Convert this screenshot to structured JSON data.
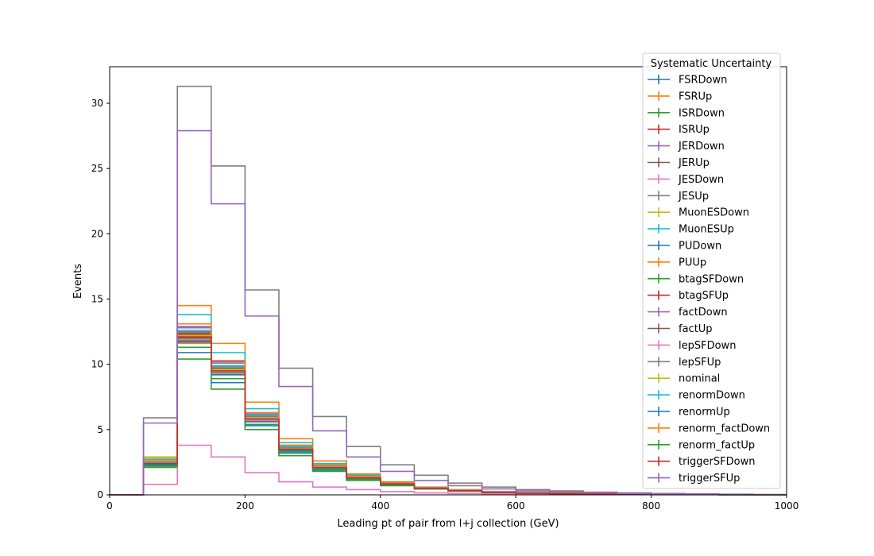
{
  "chart_data": {
    "type": "line",
    "drawstyle": "step",
    "xlabel": "Leading pt of pair from l+j collection (GeV)",
    "ylabel": "Events",
    "xlim": [
      0,
      1000
    ],
    "ylim": [
      0,
      32.8
    ],
    "xticks": [
      0,
      200,
      400,
      600,
      800,
      1000
    ],
    "yticks": [
      0,
      5,
      10,
      15,
      20,
      25,
      30
    ],
    "legend": {
      "title": "Systematic Uncertainty",
      "position": "top-right (overlapping plot edge)"
    },
    "bin_edges": [
      0,
      50,
      100,
      150,
      200,
      250,
      300,
      350,
      400,
      450,
      500,
      550,
      600,
      650,
      700,
      750,
      800,
      850,
      900,
      950,
      1000
    ],
    "series": [
      {
        "name": "FSRDown",
        "color": "#1f77b4",
        "values": [
          0,
          2.5,
          11.9,
          9.3,
          5.8,
          3.5,
          2.1,
          1.2,
          0.8,
          0.5,
          0.3,
          0.2,
          0.15,
          0.1,
          0.08,
          0.05,
          0.04,
          0.03,
          0.02,
          0.01
        ]
      },
      {
        "name": "FSRUp",
        "color": "#ff7f0e",
        "values": [
          0,
          2.8,
          14.5,
          11.6,
          7.1,
          4.3,
          2.6,
          1.6,
          1.0,
          0.6,
          0.4,
          0.25,
          0.18,
          0.12,
          0.09,
          0.06,
          0.04,
          0.03,
          0.02,
          0.01
        ]
      },
      {
        "name": "ISRDown",
        "color": "#2ca02c",
        "values": [
          0,
          2.1,
          10.4,
          8.1,
          5.0,
          3.0,
          1.8,
          1.1,
          0.7,
          0.45,
          0.28,
          0.18,
          0.12,
          0.08,
          0.06,
          0.04,
          0.03,
          0.02,
          0.01,
          0.01
        ]
      },
      {
        "name": "ISRUp",
        "color": "#d62728",
        "values": [
          0,
          2.4,
          12.3,
          9.6,
          5.9,
          3.6,
          2.2,
          1.3,
          0.85,
          0.5,
          0.32,
          0.2,
          0.14,
          0.09,
          0.07,
          0.05,
          0.03,
          0.02,
          0.02,
          0.01
        ]
      },
      {
        "name": "JERDown",
        "color": "#9467bd",
        "values": [
          0,
          2.5,
          12.9,
          10.2,
          6.2,
          3.8,
          2.3,
          1.4,
          0.9,
          0.55,
          0.35,
          0.22,
          0.15,
          0.1,
          0.07,
          0.05,
          0.03,
          0.02,
          0.02,
          0.01
        ]
      },
      {
        "name": "JERUp",
        "color": "#8c564b",
        "values": [
          0,
          2.4,
          12.4,
          9.7,
          6.0,
          3.6,
          2.2,
          1.3,
          0.85,
          0.52,
          0.33,
          0.21,
          0.14,
          0.09,
          0.07,
          0.05,
          0.03,
          0.02,
          0.02,
          0.01
        ]
      },
      {
        "name": "JESDown",
        "color": "#e377c2",
        "values": [
          0,
          0.8,
          3.8,
          2.9,
          1.7,
          1.0,
          0.6,
          0.4,
          0.25,
          0.15,
          0.1,
          0.07,
          0.05,
          0.03,
          0.02,
          0.02,
          0.01,
          0.01,
          0.0,
          0.0
        ]
      },
      {
        "name": "JESUp",
        "color": "#7f7f7f",
        "values": [
          0,
          5.9,
          31.3,
          25.2,
          15.7,
          9.7,
          6.0,
          3.7,
          2.3,
          1.5,
          0.9,
          0.6,
          0.4,
          0.3,
          0.2,
          0.15,
          0.1,
          0.07,
          0.05,
          0.03
        ]
      },
      {
        "name": "MuonESDown",
        "color": "#bcbd22",
        "values": [
          0,
          2.9,
          12.2,
          9.5,
          5.8,
          3.5,
          2.1,
          1.3,
          0.84,
          0.5,
          0.32,
          0.2,
          0.14,
          0.09,
          0.07,
          0.05,
          0.03,
          0.02,
          0.02,
          0.01
        ]
      },
      {
        "name": "MuonESUp",
        "color": "#17becf",
        "values": [
          0,
          2.7,
          13.8,
          10.9,
          6.6,
          4.0,
          2.4,
          1.5,
          0.95,
          0.58,
          0.37,
          0.23,
          0.16,
          0.1,
          0.08,
          0.05,
          0.04,
          0.03,
          0.02,
          0.01
        ]
      },
      {
        "name": "PUDown",
        "color": "#1f77b4",
        "values": [
          0,
          2.2,
          10.9,
          8.6,
          5.3,
          3.2,
          1.9,
          1.2,
          0.75,
          0.46,
          0.29,
          0.18,
          0.12,
          0.08,
          0.06,
          0.04,
          0.03,
          0.02,
          0.01,
          0.01
        ]
      },
      {
        "name": "PUUp",
        "color": "#ff7f0e",
        "values": [
          0,
          2.5,
          11.6,
          9.2,
          5.6,
          3.4,
          2.0,
          1.25,
          0.8,
          0.49,
          0.31,
          0.19,
          0.13,
          0.09,
          0.06,
          0.04,
          0.03,
          0.02,
          0.01,
          0.01
        ]
      },
      {
        "name": "btagSFDown",
        "color": "#2ca02c",
        "values": [
          0,
          2.3,
          12.0,
          9.4,
          5.7,
          3.5,
          2.1,
          1.3,
          0.82,
          0.5,
          0.32,
          0.2,
          0.14,
          0.09,
          0.07,
          0.05,
          0.03,
          0.02,
          0.02,
          0.01
        ]
      },
      {
        "name": "btagSFUp",
        "color": "#d62728",
        "values": [
          0,
          2.4,
          12.2,
          9.6,
          5.9,
          3.6,
          2.2,
          1.35,
          0.86,
          0.52,
          0.33,
          0.21,
          0.14,
          0.09,
          0.07,
          0.05,
          0.03,
          0.02,
          0.02,
          0.01
        ]
      },
      {
        "name": "factDown",
        "color": "#9467bd",
        "values": [
          0,
          2.5,
          12.8,
          10.1,
          6.2,
          3.7,
          2.3,
          1.4,
          0.9,
          0.55,
          0.35,
          0.22,
          0.15,
          0.1,
          0.07,
          0.05,
          0.03,
          0.02,
          0.02,
          0.01
        ]
      },
      {
        "name": "factUp",
        "color": "#8c564b",
        "values": [
          0,
          2.3,
          11.8,
          9.3,
          5.7,
          3.4,
          2.1,
          1.3,
          0.82,
          0.5,
          0.32,
          0.2,
          0.14,
          0.09,
          0.07,
          0.05,
          0.03,
          0.02,
          0.02,
          0.01
        ]
      },
      {
        "name": "lepSFDown",
        "color": "#e377c2",
        "values": [
          0,
          2.3,
          11.9,
          9.3,
          5.7,
          3.4,
          2.1,
          1.3,
          0.82,
          0.5,
          0.32,
          0.2,
          0.14,
          0.09,
          0.07,
          0.05,
          0.03,
          0.02,
          0.02,
          0.01
        ]
      },
      {
        "name": "lepSFUp",
        "color": "#7f7f7f",
        "values": [
          0,
          2.5,
          12.5,
          9.8,
          6.0,
          3.6,
          2.2,
          1.35,
          0.87,
          0.53,
          0.34,
          0.21,
          0.15,
          0.1,
          0.07,
          0.05,
          0.03,
          0.02,
          0.02,
          0.01
        ]
      },
      {
        "name": "nominal",
        "color": "#bcbd22",
        "values": [
          0,
          2.4,
          12.2,
          9.6,
          5.9,
          3.55,
          2.15,
          1.32,
          0.85,
          0.52,
          0.33,
          0.21,
          0.14,
          0.09,
          0.07,
          0.05,
          0.03,
          0.02,
          0.02,
          0.01
        ]
      },
      {
        "name": "renormDown",
        "color": "#17becf",
        "values": [
          0,
          2.5,
          12.6,
          9.9,
          6.1,
          3.7,
          2.25,
          1.38,
          0.88,
          0.54,
          0.34,
          0.22,
          0.15,
          0.1,
          0.07,
          0.05,
          0.03,
          0.02,
          0.02,
          0.01
        ]
      },
      {
        "name": "renormUp",
        "color": "#1f77b4",
        "values": [
          0,
          2.3,
          11.7,
          9.2,
          5.6,
          3.4,
          2.05,
          1.26,
          0.81,
          0.5,
          0.31,
          0.2,
          0.13,
          0.09,
          0.06,
          0.04,
          0.03,
          0.02,
          0.01,
          0.01
        ]
      },
      {
        "name": "renorm_factDown",
        "color": "#ff7f0e",
        "values": [
          0,
          2.6,
          13.1,
          10.3,
          6.3,
          3.8,
          2.3,
          1.42,
          0.91,
          0.56,
          0.35,
          0.22,
          0.15,
          0.1,
          0.07,
          0.05,
          0.03,
          0.02,
          0.02,
          0.01
        ]
      },
      {
        "name": "renorm_factUp",
        "color": "#2ca02c",
        "values": [
          0,
          2.2,
          11.3,
          8.9,
          5.4,
          3.3,
          2.0,
          1.22,
          0.78,
          0.48,
          0.3,
          0.19,
          0.13,
          0.08,
          0.06,
          0.04,
          0.03,
          0.02,
          0.01,
          0.01
        ]
      },
      {
        "name": "triggerSFDown",
        "color": "#d62728",
        "values": [
          0,
          2.4,
          12.1,
          9.5,
          5.8,
          3.5,
          2.1,
          1.3,
          0.84,
          0.51,
          0.32,
          0.2,
          0.14,
          0.09,
          0.07,
          0.05,
          0.03,
          0.02,
          0.02,
          0.01
        ]
      },
      {
        "name": "triggerSFUp",
        "color": "#9467bd",
        "values": [
          0,
          5.5,
          27.9,
          22.3,
          13.7,
          8.3,
          4.9,
          2.9,
          1.8,
          1.1,
          0.7,
          0.45,
          0.3,
          0.2,
          0.15,
          0.1,
          0.07,
          0.05,
          0.03,
          0.02
        ]
      }
    ]
  }
}
